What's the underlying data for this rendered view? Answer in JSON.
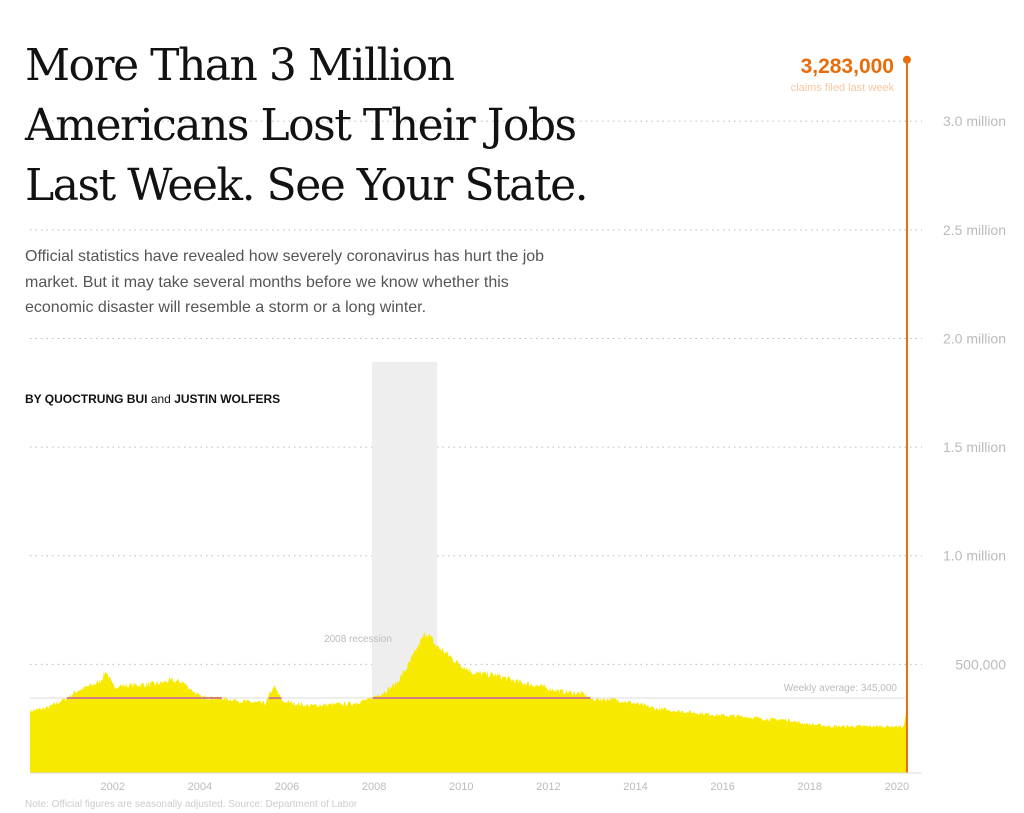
{
  "headline": "More Than 3 Million Americans Lost Their Jobs Last Week. See Your State.",
  "dek": "Official statistics have revealed how severely coronavirus has hurt the job market. But it may take several months before we know whether this economic disaster will resemble a storm or a long winter.",
  "byline": {
    "prefix": "BY",
    "author1": "QUOCTRUNG BUI",
    "conjunction": "and",
    "author2": "JUSTIN WOLFERS"
  },
  "colors": {
    "area": "#f8e900",
    "average_line": "#cc1f1f",
    "peak": "#e86e0c",
    "recession_band": "#eeeeee",
    "gridline": "#bbbbbb"
  },
  "chart_data": {
    "type": "area",
    "title": "More Than 3 Million Americans Lost Their Jobs Last Week. See Your State.",
    "xlabel": "",
    "ylabel": "",
    "xlim": [
      2000.1,
      2020.3
    ],
    "ylim": [
      0,
      3300000
    ],
    "grid": true,
    "y_ticks": [
      {
        "value": 500000,
        "label": "500,000"
      },
      {
        "value": 1000000,
        "label": "1.0 million"
      },
      {
        "value": 1500000,
        "label": "1.5 million"
      },
      {
        "value": 2000000,
        "label": "2.0 million"
      },
      {
        "value": 2500000,
        "label": "2.5 million"
      },
      {
        "value": 3000000,
        "label": "3.0 million"
      }
    ],
    "x_ticks": [
      {
        "value": 2002,
        "label": "2002"
      },
      {
        "value": 2004,
        "label": "2004"
      },
      {
        "value": 2006,
        "label": "2006"
      },
      {
        "value": 2008,
        "label": "2008"
      },
      {
        "value": 2010,
        "label": "2010"
      },
      {
        "value": 2012,
        "label": "2012"
      },
      {
        "value": 2014,
        "label": "2014"
      },
      {
        "value": 2016,
        "label": "2016"
      },
      {
        "value": 2018,
        "label": "2018"
      },
      {
        "value": 2020,
        "label": "2020"
      }
    ],
    "series": [
      {
        "values": [
          [
            2000.1,
            285000
          ],
          [
            2000.5,
            300000
          ],
          [
            2000.9,
            340000
          ],
          [
            2001.2,
            380000
          ],
          [
            2001.4,
            395000
          ],
          [
            2001.7,
            420000
          ],
          [
            2001.85,
            470000
          ],
          [
            2002.0,
            400000
          ],
          [
            2002.5,
            405000
          ],
          [
            2003.0,
            410000
          ],
          [
            2003.3,
            425000
          ],
          [
            2003.6,
            420000
          ],
          [
            2004.0,
            350000
          ],
          [
            2004.5,
            345000
          ],
          [
            2005.0,
            330000
          ],
          [
            2005.5,
            320000
          ],
          [
            2005.7,
            400000
          ],
          [
            2005.9,
            330000
          ],
          [
            2006.5,
            310000
          ],
          [
            2007.0,
            315000
          ],
          [
            2007.5,
            320000
          ],
          [
            2007.9,
            340000
          ],
          [
            2008.2,
            370000
          ],
          [
            2008.5,
            410000
          ],
          [
            2008.8,
            500000
          ],
          [
            2009.0,
            580000
          ],
          [
            2009.2,
            650000
          ],
          [
            2009.4,
            590000
          ],
          [
            2009.6,
            560000
          ],
          [
            2009.9,
            510000
          ],
          [
            2010.3,
            460000
          ],
          [
            2010.8,
            450000
          ],
          [
            2011.3,
            420000
          ],
          [
            2011.8,
            400000
          ],
          [
            2012.3,
            375000
          ],
          [
            2012.8,
            365000
          ],
          [
            2013.0,
            340000
          ],
          [
            2013.5,
            340000
          ],
          [
            2014.0,
            320000
          ],
          [
            2014.5,
            295000
          ],
          [
            2015.0,
            285000
          ],
          [
            2015.5,
            275000
          ],
          [
            2016.0,
            265000
          ],
          [
            2016.5,
            260000
          ],
          [
            2017.0,
            248000
          ],
          [
            2017.5,
            245000
          ],
          [
            2017.8,
            230000
          ],
          [
            2018.0,
            225000
          ],
          [
            2018.5,
            215000
          ],
          [
            2019.0,
            215000
          ],
          [
            2019.5,
            215000
          ],
          [
            2020.0,
            215000
          ],
          [
            2020.15,
            211000
          ],
          [
            2020.22,
            282000
          ],
          [
            2020.23,
            3283000
          ]
        ]
      }
    ],
    "average": {
      "value": 345000,
      "label": "Weekly average: 345,000"
    },
    "recession": {
      "start": 2007.95,
      "end": 2009.45,
      "label": "2008 recession"
    },
    "peak": {
      "x": 2020.23,
      "value_label": "3,283,000",
      "sublabel": "claims filed last week"
    },
    "note": "Note: Official figures are seasonally adjusted. Source: Department of Labor"
  }
}
